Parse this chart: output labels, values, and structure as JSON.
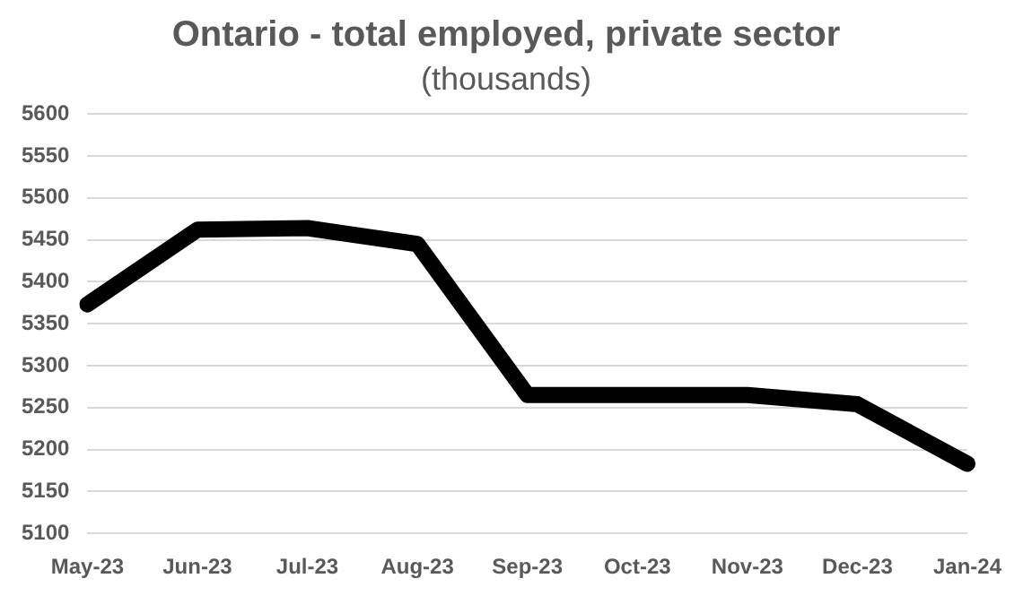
{
  "chart_data": {
    "type": "line",
    "title": "Ontario - total employed, private sector",
    "subtitle": "(thousands)",
    "categories": [
      "May-23",
      "Jun-23",
      "Jul-23",
      "Aug-23",
      "Sep-23",
      "Oct-23",
      "Nov-23",
      "Dec-23",
      "Jan-24"
    ],
    "series": [
      {
        "color": "#000000",
        "values": [
          5373,
          5462,
          5464,
          5445,
          5265,
          5265,
          5265,
          5254,
          5183
        ]
      }
    ],
    "ylim": [
      5100,
      5600
    ],
    "yticks": [
      5100,
      5150,
      5200,
      5250,
      5300,
      5350,
      5400,
      5450,
      5500,
      5550,
      5600
    ],
    "grid": "y",
    "legend": false,
    "marker": "none",
    "line_style": "solid"
  }
}
